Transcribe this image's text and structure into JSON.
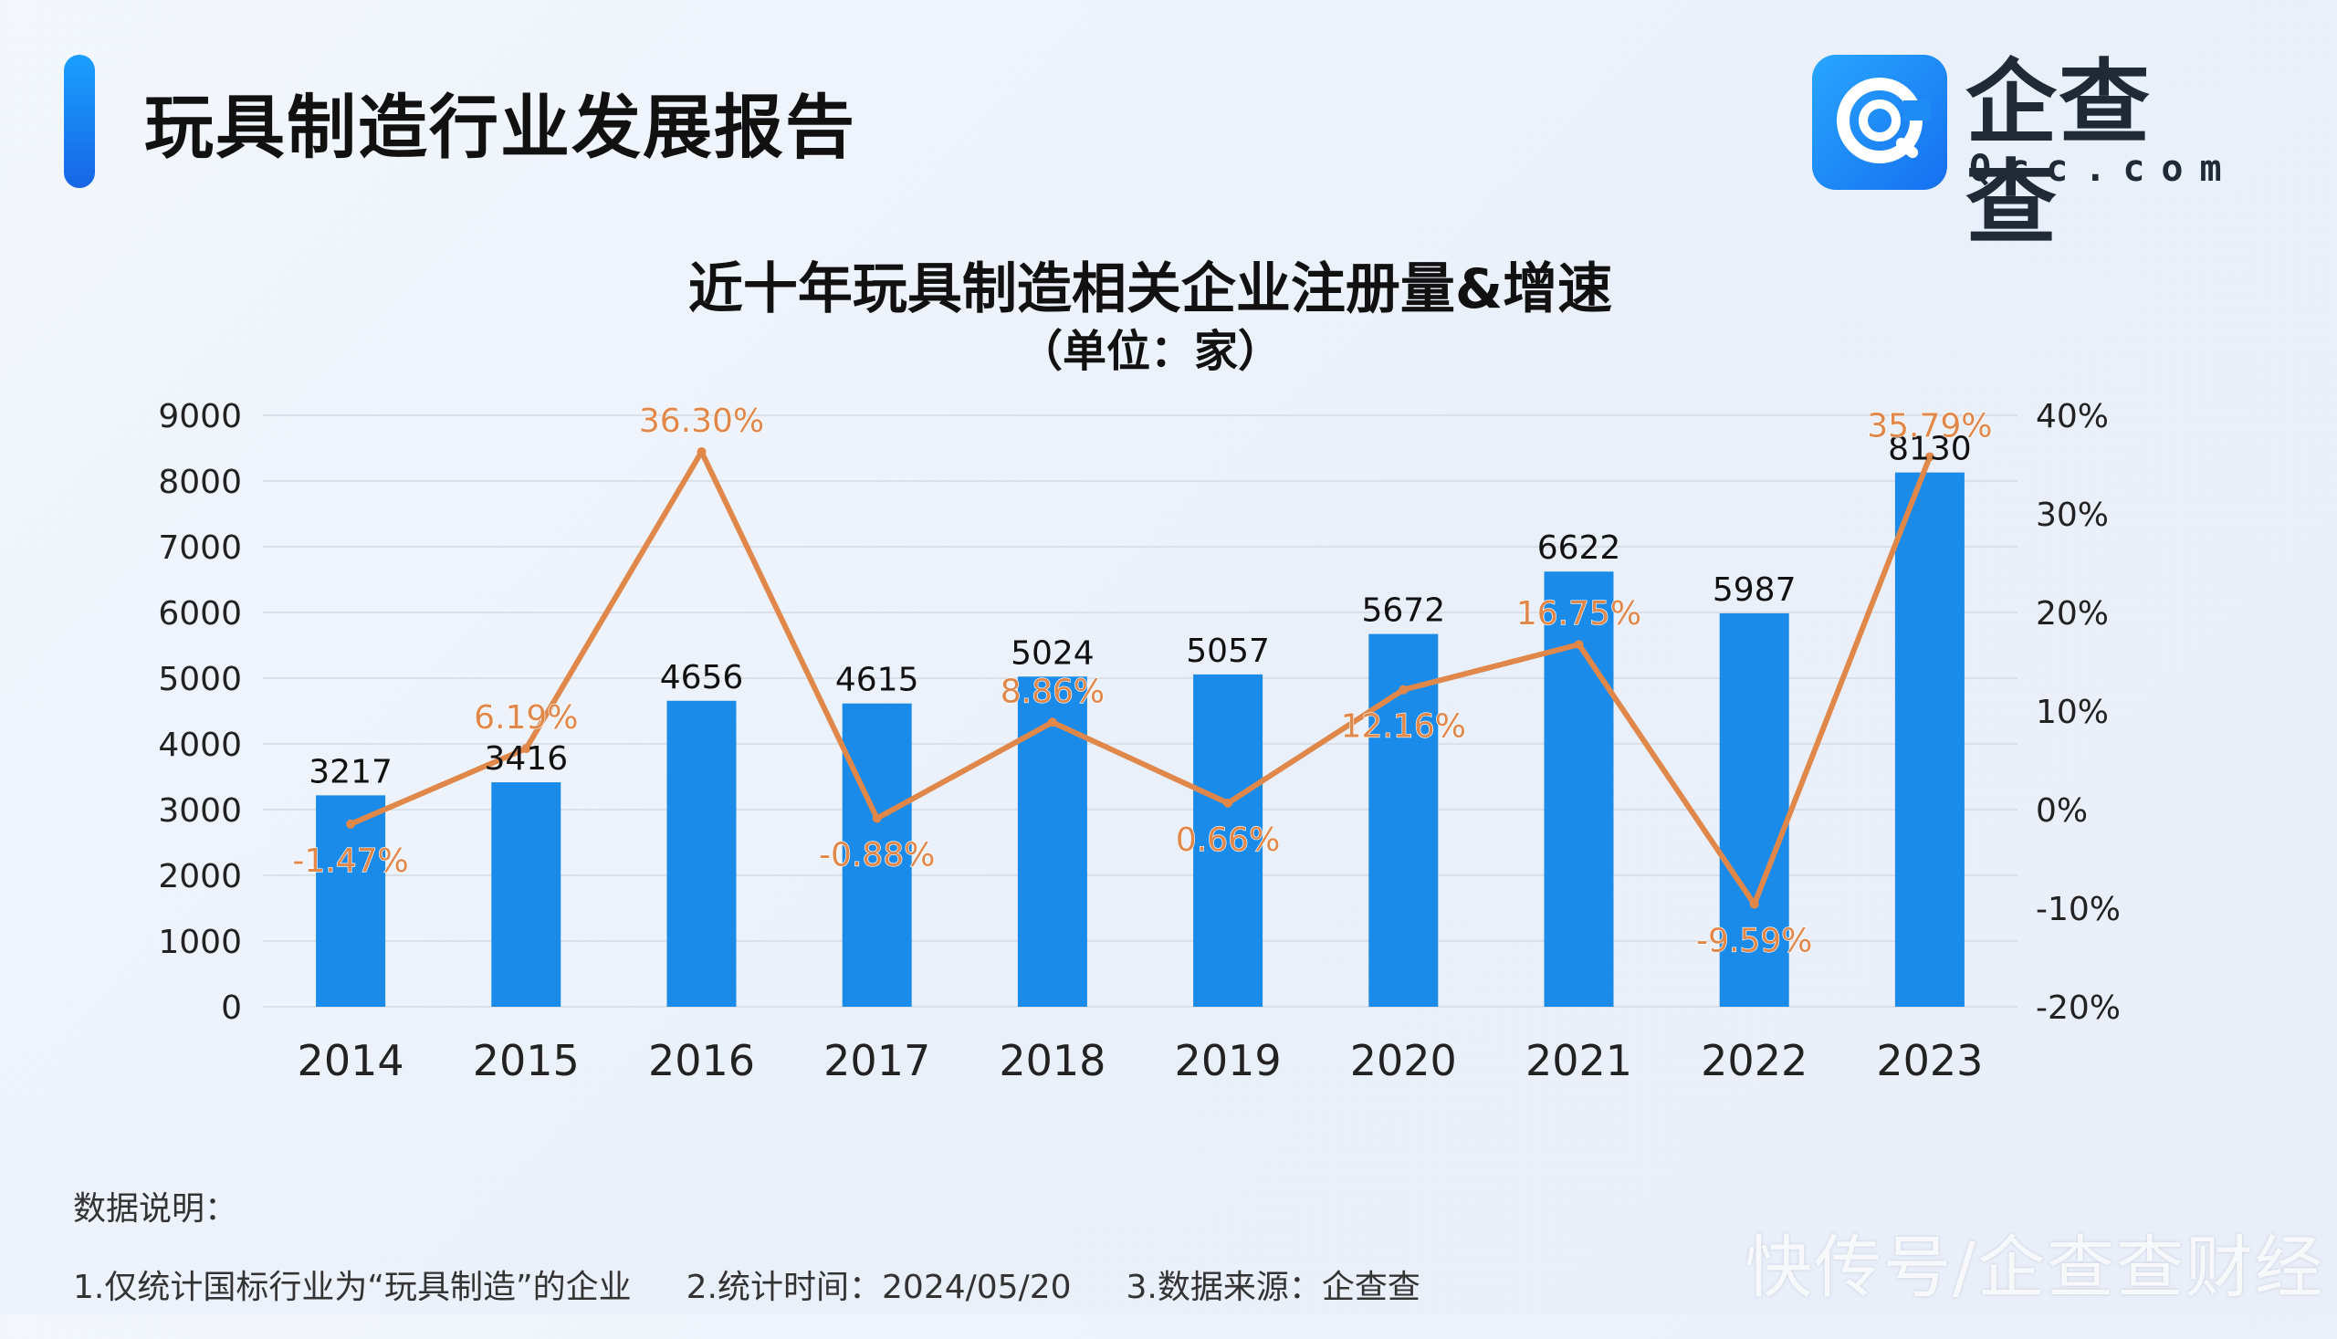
{
  "header": {
    "title": "玩具制造行业发展报告",
    "logo_cn": "企查查",
    "logo_en": "Qcc.com"
  },
  "chart_data": {
    "type": "bar",
    "title": "近十年玩具制造相关企业注册量&增速",
    "subtitle": "（单位：家）",
    "categories": [
      "2014",
      "2015",
      "2016",
      "2017",
      "2018",
      "2019",
      "2020",
      "2021",
      "2022",
      "2023"
    ],
    "series": [
      {
        "type": "bar",
        "values": [
          3217,
          3416,
          4656,
          4615,
          5024,
          5057,
          5672,
          6622,
          5987,
          8130
        ],
        "labels": [
          "3217",
          "3416",
          "4656",
          "4615",
          "5024",
          "5057",
          "5672",
          "6622",
          "5987",
          "8130"
        ],
        "color": "#1a8be8",
        "axis": "left"
      },
      {
        "type": "line",
        "values": [
          -1.47,
          6.19,
          36.3,
          -0.88,
          8.86,
          0.66,
          12.16,
          16.75,
          -9.59,
          35.79
        ],
        "labels": [
          "-1.47%",
          "6.19%",
          "36.30%",
          "-0.88%",
          "8.86%",
          "0.66%",
          "12.16%",
          "16.75%",
          "-9.59%",
          "35.79%"
        ],
        "color": "#e0874a",
        "axis": "right"
      }
    ],
    "y_left": {
      "min": 0,
      "max": 9000,
      "ticks": [
        "0",
        "1000",
        "2000",
        "3000",
        "4000",
        "5000",
        "6000",
        "7000",
        "8000",
        "9000"
      ]
    },
    "y_right": {
      "min": -20,
      "max": 40,
      "ticks": [
        "-20%",
        "-10%",
        "0%",
        "10%",
        "20%",
        "30%",
        "40%"
      ]
    },
    "grid": true,
    "legend": "none"
  },
  "notes": {
    "heading": "数据说明：",
    "items": [
      "1.仅统计国标行业为“玩具制造”的企业",
      "2.统计时间：2024/05/20",
      "3.数据来源：企查查"
    ]
  },
  "watermark": "快传号/企查查财经",
  "colors": {
    "accent": "#1a8be8",
    "line": "#e0874a"
  }
}
